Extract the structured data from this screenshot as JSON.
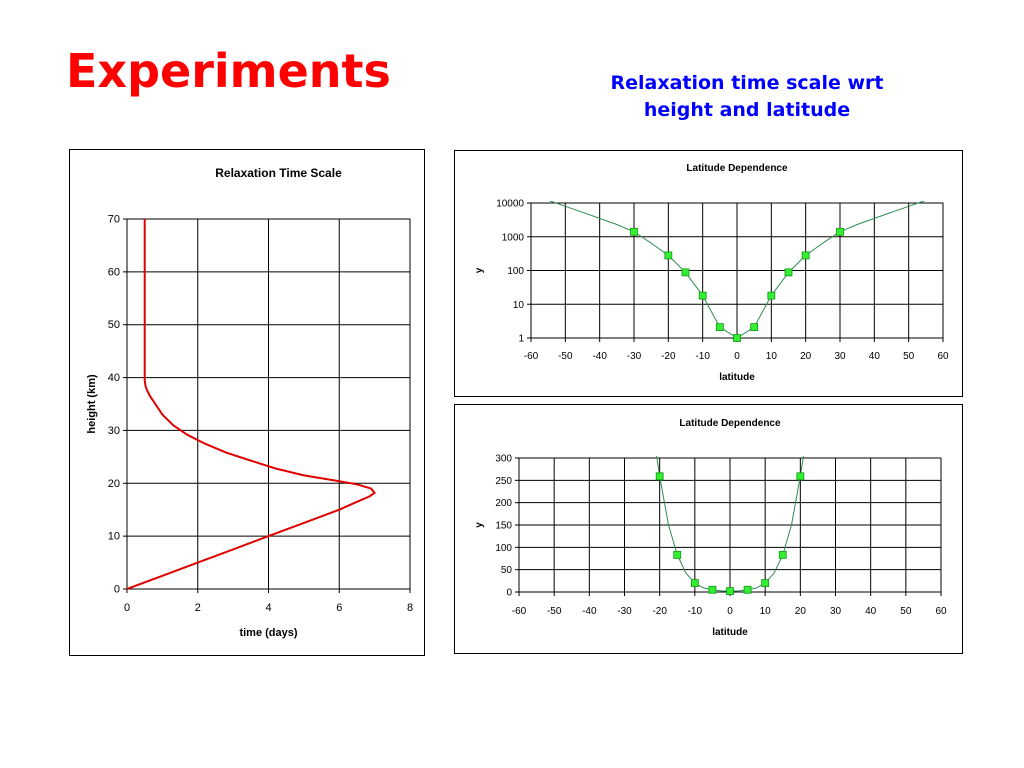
{
  "slide": {
    "title": "Experiments",
    "subtitle_line1": "Relaxation time scale wrt",
    "subtitle_line2": "height and latitude",
    "title_color": "#ff0000",
    "subtitle_color": "#0000ff"
  },
  "chart_data": [
    {
      "type": "line",
      "title": "Relaxation Time Scale",
      "xlabel": "time (days)",
      "ylabel": "height (km)",
      "xlim": [
        0,
        8
      ],
      "ylim": [
        0,
        70
      ],
      "xticks": [
        0,
        2,
        4,
        6,
        8
      ],
      "yticks": [
        0,
        10,
        20,
        30,
        40,
        50,
        60,
        70
      ],
      "grid": true,
      "legend": "none",
      "series": [
        {
          "color": "#e00000",
          "x": [
            0,
            1,
            2,
            3,
            4,
            5,
            6,
            6.5,
            6.85,
            7.0,
            6.9,
            6.5,
            5.9,
            5.0,
            4.2,
            3.4,
            2.8,
            2.2,
            1.7,
            1.3,
            1.0,
            0.8,
            0.65,
            0.56,
            0.52,
            0.5,
            0.5,
            0.5,
            0.5,
            0.5
          ],
          "y": [
            0,
            2.5,
            5,
            7.5,
            10,
            12.5,
            15,
            16.5,
            17.5,
            18.2,
            19.0,
            19.8,
            20.5,
            21.5,
            22.8,
            24.5,
            25.8,
            27.5,
            29.2,
            31,
            33,
            35,
            36.5,
            37.7,
            38.5,
            39.5,
            45,
            55,
            65,
            70
          ]
        }
      ]
    },
    {
      "type": "line",
      "title": "Latitude Dependence",
      "xlabel": "latitude",
      "ylabel": "y",
      "yscale": "log",
      "xlim": [
        -60,
        60
      ],
      "ylim": [
        1,
        10000
      ],
      "xticks": [
        -60,
        -50,
        -40,
        -30,
        -20,
        -10,
        0,
        10,
        20,
        30,
        40,
        50,
        60
      ],
      "ytick_labels": [
        "1",
        "10",
        "100",
        "1000",
        "10000"
      ],
      "grid": true,
      "legend": "none",
      "line_color": "#2e8b57",
      "marker_color": "#33ee33",
      "markers": {
        "x": [
          -30,
          -20,
          -15,
          -10,
          -5,
          0,
          5,
          10,
          15,
          20,
          30
        ],
        "y": [
          1400,
          280,
          88,
          18,
          2.1,
          1,
          2.1,
          18,
          88,
          280,
          1400
        ]
      },
      "curve": {
        "x": [
          -55,
          -50,
          -45,
          -40,
          -35,
          -30,
          -25,
          -20,
          -15,
          -10,
          -5,
          0,
          5,
          10,
          15,
          20,
          25,
          30,
          35,
          40,
          45,
          50,
          55
        ],
        "y": [
          12000,
          8000,
          5300,
          3500,
          2300,
          1400,
          650,
          280,
          88,
          18,
          2.1,
          1,
          2.1,
          18,
          88,
          280,
          650,
          1400,
          2300,
          3500,
          5300,
          8000,
          12000
        ]
      }
    },
    {
      "type": "line",
      "title": "Latitude Dependence",
      "xlabel": "latitude",
      "ylabel": "y",
      "xlim": [
        -60,
        60
      ],
      "ylim": [
        0,
        300
      ],
      "xticks": [
        -60,
        -50,
        -40,
        -30,
        -20,
        -10,
        0,
        10,
        20,
        30,
        40,
        50,
        60
      ],
      "yticks": [
        0,
        50,
        100,
        150,
        200,
        250,
        300
      ],
      "grid": true,
      "legend": "none",
      "line_color": "#2e8b57",
      "marker_color": "#33ee33",
      "markers": {
        "x": [
          -20,
          -15,
          -10,
          -5,
          0,
          5,
          10,
          15,
          20
        ],
        "y": [
          259,
          83,
          20,
          5,
          2,
          5,
          20,
          83,
          259
        ]
      },
      "curve": {
        "x": [
          -21,
          -20,
          -17.5,
          -15,
          -12.5,
          -10,
          -7.5,
          -5,
          -2.5,
          0,
          2.5,
          5,
          7.5,
          10,
          12.5,
          15,
          17.5,
          20,
          21
        ],
        "y": [
          310,
          259,
          150,
          83,
          42,
          20,
          9,
          5,
          2.5,
          2,
          2.5,
          5,
          9,
          20,
          42,
          83,
          150,
          259,
          310
        ]
      }
    }
  ]
}
